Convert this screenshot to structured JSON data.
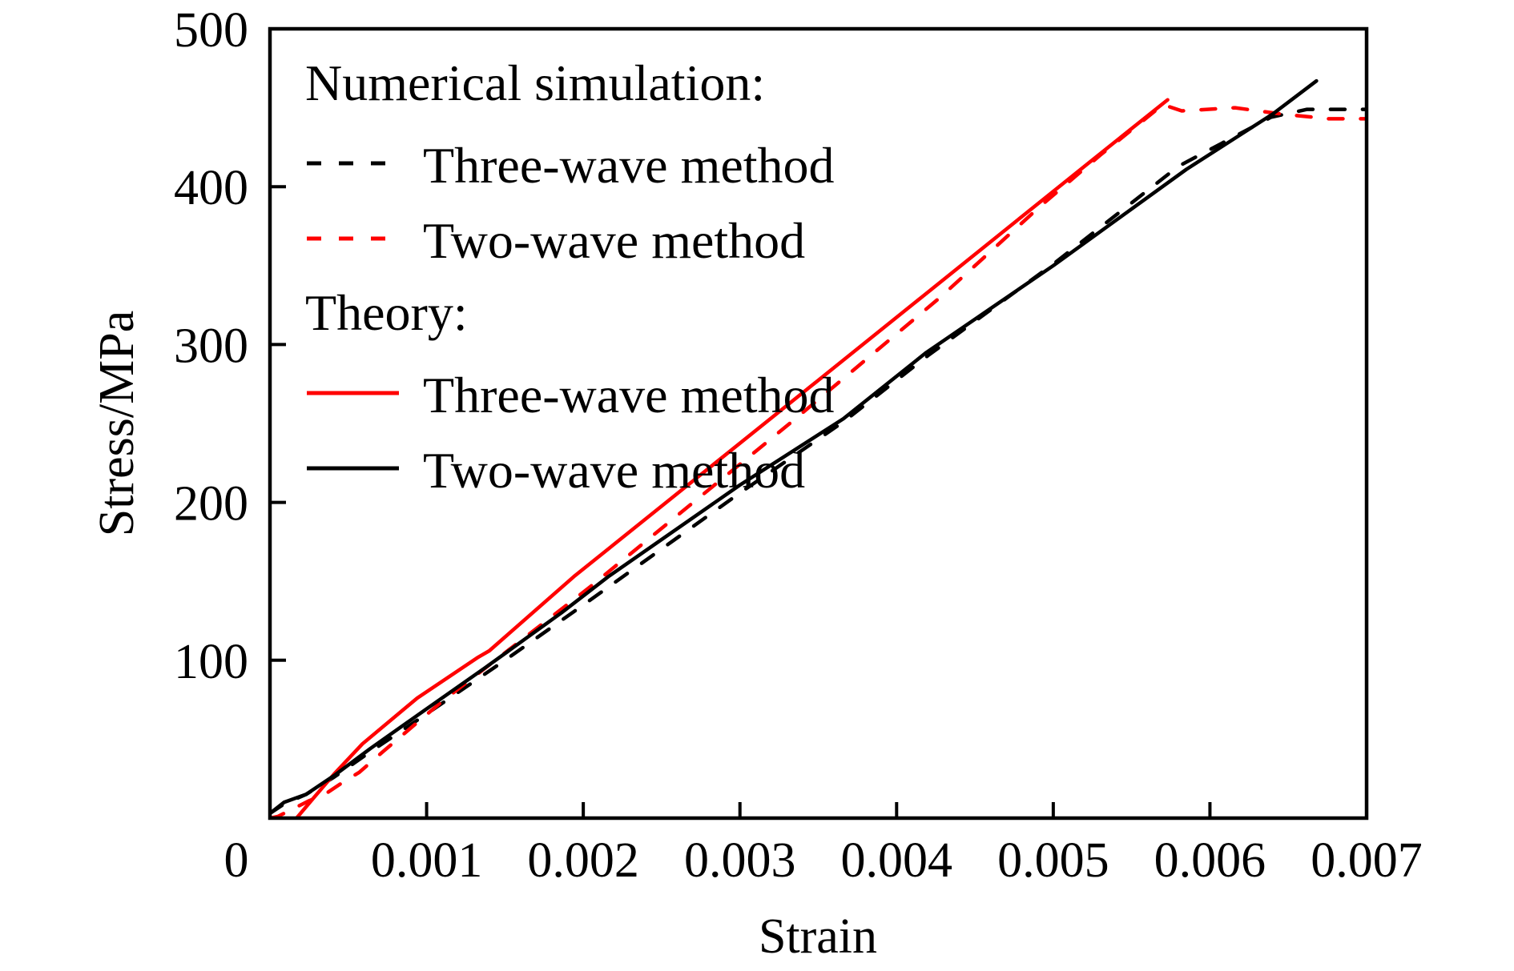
{
  "chart_data": {
    "type": "line",
    "title": "",
    "xlabel": "Strain",
    "ylabel": "Stress/MPa",
    "xlim": [
      0,
      0.007
    ],
    "ylim": [
      0,
      500
    ],
    "grid": false,
    "legend_position": "top-left",
    "x_ticks": [
      {
        "value": 0,
        "label": "0"
      },
      {
        "value": 0.001,
        "label": "0.001"
      },
      {
        "value": 0.002,
        "label": "0.002"
      },
      {
        "value": 0.003,
        "label": "0.003"
      },
      {
        "value": 0.004,
        "label": "0.004"
      },
      {
        "value": 0.005,
        "label": "0.005"
      },
      {
        "value": 0.006,
        "label": "0.006"
      },
      {
        "value": 0.007,
        "label": "0.007"
      }
    ],
    "y_ticks": [
      {
        "value": 100,
        "label": "100"
      },
      {
        "value": 200,
        "label": "200"
      },
      {
        "value": 300,
        "label": "300"
      },
      {
        "value": 400,
        "label": "400"
      },
      {
        "value": 500,
        "label": "500"
      }
    ],
    "legend": [
      {
        "kind": "header",
        "label": "Numerical simulation:"
      },
      {
        "kind": "entry",
        "series": "sim_three_wave",
        "label": "Three-wave method"
      },
      {
        "kind": "entry",
        "series": "sim_two_wave",
        "label": "Two-wave method"
      },
      {
        "kind": "header",
        "label": "Theory:"
      },
      {
        "kind": "entry",
        "series": "theory_three_wave",
        "label": "Three-wave method"
      },
      {
        "kind": "entry",
        "series": "theory_two_wave",
        "label": "Two-wave method"
      }
    ],
    "series": [
      {
        "id": "sim_three_wave",
        "name": "Numerical simulation: Three-wave method",
        "color": "#000000",
        "dashed": true,
        "points": [
          [
            0,
            3
          ],
          [
            9e-05,
            9
          ],
          [
            0.00023,
            15
          ],
          [
            0.00041,
            26
          ],
          [
            0.00064,
            42
          ],
          [
            0.001,
            66
          ],
          [
            0.0015,
            100
          ],
          [
            0.002,
            135
          ],
          [
            0.003,
            206
          ],
          [
            0.00366,
            251
          ],
          [
            0.0042,
            293
          ],
          [
            0.005,
            351
          ],
          [
            0.0058,
            413
          ],
          [
            0.00639,
            444
          ],
          [
            0.00662,
            449
          ],
          [
            0.007,
            449
          ]
        ]
      },
      {
        "id": "sim_two_wave",
        "name": "Numerical simulation: Two-wave method",
        "color": "#ff0000",
        "dashed": true,
        "points": [
          [
            0,
            0
          ],
          [
            5e-05,
            1
          ],
          [
            0.00025,
            11
          ],
          [
            0.00035,
            15
          ],
          [
            0.00047,
            23
          ],
          [
            0.00057,
            29
          ],
          [
            0.00072,
            42
          ],
          [
            0.0011,
            74
          ],
          [
            0.00196,
            140
          ],
          [
            0.00205,
            147
          ],
          [
            0.00333,
            251
          ],
          [
            0.00428,
            330
          ],
          [
            0.00491,
            387
          ],
          [
            0.0053,
            420
          ],
          [
            0.0057,
            452
          ],
          [
            0.00582,
            448
          ],
          [
            0.00616,
            450
          ],
          [
            0.00646,
            446
          ],
          [
            0.00676,
            443
          ],
          [
            0.007,
            443
          ]
        ]
      },
      {
        "id": "theory_three_wave",
        "name": "Theory: Three-wave method",
        "color": "#ff0000",
        "dashed": false,
        "points": [
          [
            0.00017,
            0
          ],
          [
            0.00028,
            13
          ],
          [
            0.00041,
            28
          ],
          [
            0.00059,
            47
          ],
          [
            0.00094,
            76
          ],
          [
            0.00133,
            102
          ],
          [
            0.0014,
            106
          ],
          [
            0.00194,
            153
          ],
          [
            0.00322,
            255
          ],
          [
            0.00416,
            330
          ],
          [
            0.00525,
            417
          ],
          [
            0.00573,
            455
          ]
        ]
      },
      {
        "id": "theory_two_wave",
        "name": "Theory: Two-wave method",
        "color": "#000000",
        "dashed": false,
        "points": [
          [
            0,
            3
          ],
          [
            9e-05,
            10
          ],
          [
            0.00023,
            15
          ],
          [
            0.00041,
            27
          ],
          [
            0.00064,
            44
          ],
          [
            0.00094,
            65
          ],
          [
            0.00137,
            95
          ],
          [
            0.00186,
            130
          ],
          [
            0.00216,
            153
          ],
          [
            0.003,
            211
          ],
          [
            0.00366,
            253
          ],
          [
            0.00419,
            295
          ],
          [
            0.005,
            350
          ],
          [
            0.00585,
            411
          ],
          [
            0.0064,
            446
          ],
          [
            0.00668,
            467
          ]
        ]
      }
    ]
  }
}
